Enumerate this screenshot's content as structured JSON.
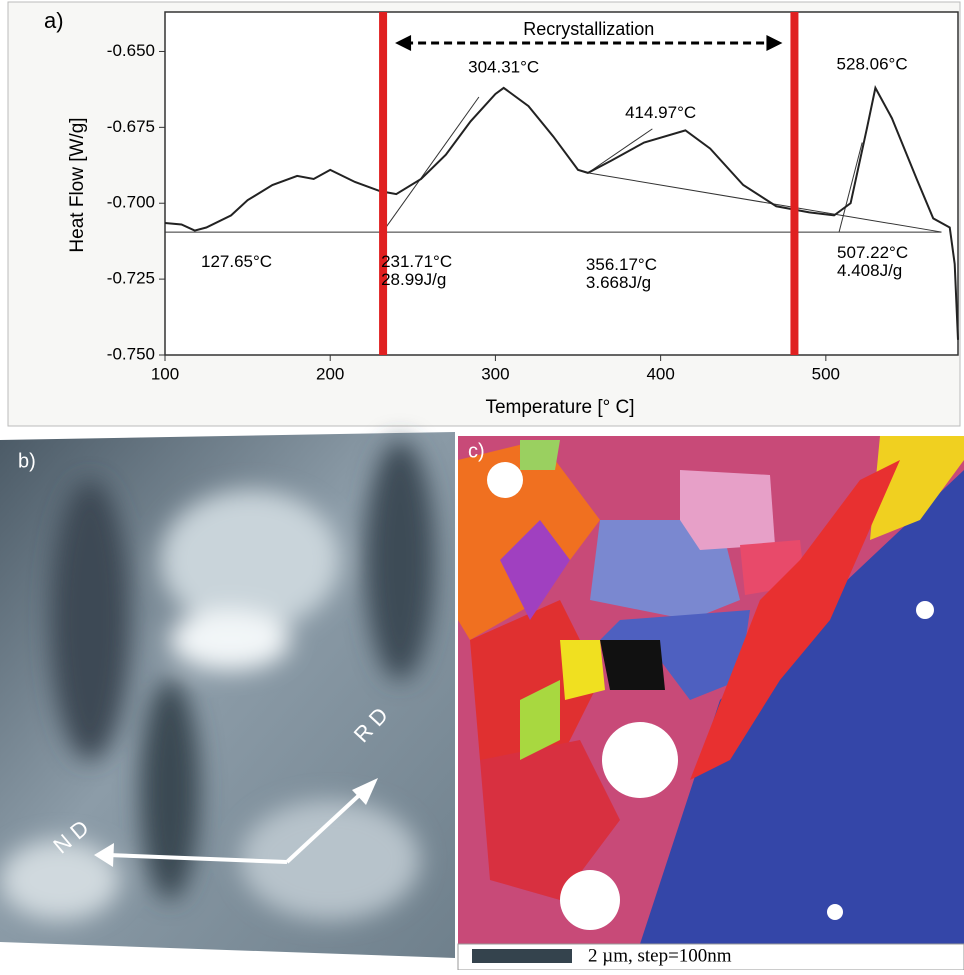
{
  "chart_data": {
    "type": "line",
    "panel_label": "a)",
    "x_label": "Temperature [° C]",
    "y_label": "Heat Flow [W/g]",
    "x": [
      100,
      110,
      118,
      125,
      140,
      150,
      165,
      180,
      190,
      200,
      215,
      230,
      240,
      255,
      270,
      285,
      300,
      305,
      320,
      335,
      350,
      356,
      370,
      390,
      415,
      430,
      450,
      470,
      490,
      505,
      515,
      525,
      530,
      540,
      555,
      565,
      575,
      578,
      580
    ],
    "values": [
      -0.7065,
      -0.707,
      -0.709,
      -0.708,
      -0.704,
      -0.699,
      -0.694,
      -0.691,
      -0.692,
      -0.689,
      -0.693,
      -0.696,
      -0.697,
      -0.692,
      -0.684,
      -0.673,
      -0.664,
      -0.662,
      -0.668,
      -0.678,
      -0.689,
      -0.69,
      -0.686,
      -0.68,
      -0.676,
      -0.682,
      -0.694,
      -0.701,
      -0.703,
      -0.704,
      -0.7,
      -0.675,
      -0.662,
      -0.672,
      -0.692,
      -0.705,
      -0.708,
      -0.72,
      -0.745
    ],
    "color": "#222222",
    "tangent_lines": [
      {
        "x": [
          100,
          570
        ],
        "y": [
          -0.7095,
          -0.7095
        ]
      },
      {
        "x": [
          356,
          570
        ],
        "y": [
          -0.69,
          -0.7095
        ]
      },
      {
        "x": [
          231.7,
          290
        ],
        "y": [
          -0.7095,
          -0.665
        ]
      },
      {
        "x": [
          356,
          395
        ],
        "y": [
          -0.69,
          -0.6755
        ]
      },
      {
        "x": [
          508,
          522
        ],
        "y": [
          -0.7095,
          -0.68
        ]
      }
    ],
    "vlines": [
      232,
      481
    ],
    "vline_color": "#e02020",
    "span_label": "Recrystallization",
    "annotations": [
      "304.31°C",
      "414.97°C",
      "528.06°C",
      "127.65°C",
      "231.71°C",
      "28.99J/g",
      "356.17°C",
      "3.668J/g",
      "507.22°C",
      "4.408J/g"
    ],
    "xlim": [
      100,
      580
    ],
    "ylim": [
      -0.75,
      -0.637
    ],
    "xticks": [
      100,
      200,
      300,
      400,
      500
    ],
    "yticks": [
      {
        "value": -0.65,
        "label": "-0.650"
      },
      {
        "value": -0.675,
        "label": "-0.675"
      },
      {
        "value": -0.7,
        "label": "-0.700"
      },
      {
        "value": -0.725,
        "label": "-0.725"
      },
      {
        "value": -0.75,
        "label": "-0.750"
      }
    ]
  },
  "panel_b": {
    "label": "b)",
    "arrow_rd": "R D",
    "arrow_nd": "N D"
  },
  "panel_c": {
    "label": "c)",
    "scale_bar": "2 µm, step=100nm"
  }
}
